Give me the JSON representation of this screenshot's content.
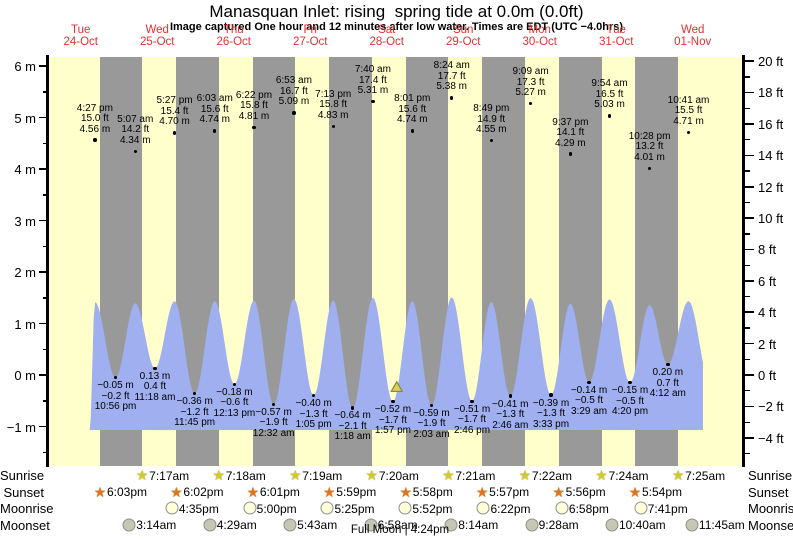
{
  "title": "Manasquan Inlet: rising  spring tide at 0.0m (0.0ft)",
  "subtitle": "Image captured One hour and 12 minutes after low water. Times are EDT (UTC −4.0hrs)",
  "full_moon": "Full Moon | 4:24pm",
  "colors": {
    "background": "#ffffff",
    "day_band": "#ffffcc",
    "night_band": "#999999",
    "water": "#9fafef",
    "day_label_red": "#e03232",
    "annotation": "#000000",
    "marker_fill": "#ddcf5e",
    "marker_stroke": "#8b8b33",
    "sunrise_star": "#d2ca28",
    "sunset_star": "#e1751e",
    "moonrise_circle": "#ffffd9",
    "moonset_circle": "#c6c6b4"
  },
  "chart_data": {
    "type": "area",
    "title": "Manasquan Inlet: rising  spring tide at 0.0m (0.0ft)",
    "x_days": [
      {
        "name": "Tue",
        "date": "24-Oct"
      },
      {
        "name": "Wed",
        "date": "25-Oct"
      },
      {
        "name": "Thu",
        "date": "26-Oct"
      },
      {
        "name": "Fri",
        "date": "27-Oct"
      },
      {
        "name": "Sat",
        "date": "28-Oct"
      },
      {
        "name": "Sun",
        "date": "29-Oct"
      },
      {
        "name": "Mon",
        "date": "30-Oct"
      },
      {
        "name": "Tue",
        "date": "31-Oct"
      },
      {
        "name": "Wed",
        "date": "01-Nov"
      }
    ],
    "y_axis_left": {
      "unit": "m",
      "tick_values": [
        6,
        5,
        4,
        3,
        2,
        1,
        0,
        -1
      ],
      "tick_labels": [
        "6 m",
        "5 m",
        "4 m",
        "3 m",
        "2 m",
        "1 m",
        "0 m",
        "−1 m"
      ]
    },
    "y_axis_right": {
      "unit": "ft",
      "tick_values": [
        20,
        18,
        16,
        14,
        12,
        10,
        8,
        6,
        4,
        2,
        0,
        -2,
        -4
      ],
      "tick_labels": [
        "20 ft",
        "18 ft",
        "16 ft",
        "14 ft",
        "12 ft",
        "10 ft",
        "8 ft",
        "6 ft",
        "4 ft",
        "2 ft",
        "0 ft",
        "−2 ft",
        "−4 ft"
      ]
    },
    "tides": [
      {
        "kind": "high",
        "day": 0,
        "time": "4:27 pm",
        "ft": "15.0 ft",
        "m": "4.56 m",
        "m_value": 4.56
      },
      {
        "kind": "low",
        "day": 0,
        "time": "10:56 pm",
        "ft": "−0.2 ft",
        "m": "−0.05 m",
        "m_value": -0.05
      },
      {
        "kind": "high",
        "day": 1,
        "time": "5:07 am",
        "ft": "14.2 ft",
        "m": "4.34 m",
        "m_value": 4.34
      },
      {
        "kind": "low",
        "day": 1,
        "time": "11:18 am",
        "ft": "0.4 ft",
        "m": "0.13 m",
        "m_value": 0.13
      },
      {
        "kind": "high",
        "day": 1,
        "time": "5:27 pm",
        "ft": "15.4 ft",
        "m": "4.70 m",
        "m_value": 4.7
      },
      {
        "kind": "low",
        "day": 1,
        "time": "11:45 pm",
        "ft": "−1.2 ft",
        "m": "−0.36 m",
        "m_value": -0.36
      },
      {
        "kind": "high",
        "day": 2,
        "time": "6:03 am",
        "ft": "15.6 ft",
        "m": "4.74 m",
        "m_value": 4.74
      },
      {
        "kind": "low",
        "day": 2,
        "time": "12:13 pm",
        "ft": "−0.6 ft",
        "m": "−0.18 m",
        "m_value": -0.18
      },
      {
        "kind": "high",
        "day": 2,
        "time": "6:22 pm",
        "ft": "15.8 ft",
        "m": "4.81 m",
        "m_value": 4.81
      },
      {
        "kind": "low",
        "day": 3,
        "time": "12:32 am",
        "ft": "−1.9 ft",
        "m": "−0.57 m",
        "m_value": -0.57
      },
      {
        "kind": "high",
        "day": 3,
        "time": "6:53 am",
        "ft": "16.7 ft",
        "m": "5.09 m",
        "m_value": 5.09
      },
      {
        "kind": "low",
        "day": 3,
        "time": "1:05 pm",
        "ft": "−1.3 ft",
        "m": "−0.40 m",
        "m_value": -0.4
      },
      {
        "kind": "high",
        "day": 3,
        "time": "7:13 pm",
        "ft": "15.8 ft",
        "m": "4.83 m",
        "m_value": 4.83
      },
      {
        "kind": "low",
        "day": 4,
        "time": "1:18 am",
        "ft": "−2.1 ft",
        "m": "−0.64 m",
        "m_value": -0.64
      },
      {
        "kind": "high",
        "day": 4,
        "time": "7:40 am",
        "ft": "17.4 ft",
        "m": "5.31 m",
        "m_value": 5.31
      },
      {
        "kind": "low",
        "day": 4,
        "time": "1:57 pm",
        "ft": "−1.7 ft",
        "m": "−0.52 m",
        "m_value": -0.52
      },
      {
        "kind": "high",
        "day": 4,
        "time": "8:01 pm",
        "ft": "15.6 ft",
        "m": "4.74 m",
        "m_value": 4.74
      },
      {
        "kind": "low",
        "day": 5,
        "time": "2:03 am",
        "ft": "−1.9 ft",
        "m": "−0.59 m",
        "m_value": -0.59
      },
      {
        "kind": "high",
        "day": 5,
        "time": "8:24 am",
        "ft": "17.7 ft",
        "m": "5.38 m",
        "m_value": 5.38
      },
      {
        "kind": "low",
        "day": 5,
        "time": "2:46 pm",
        "ft": "−1.7 ft",
        "m": "−0.51 m",
        "m_value": -0.51
      },
      {
        "kind": "high",
        "day": 5,
        "time": "8:49 pm",
        "ft": "14.9 ft",
        "m": "4.55 m",
        "m_value": 4.55
      },
      {
        "kind": "low",
        "day": 6,
        "time": "2:46 am",
        "ft": "−1.3 ft",
        "m": "−0.41 m",
        "m_value": -0.41
      },
      {
        "kind": "high",
        "day": 6,
        "time": "9:09 am",
        "ft": "17.3 ft",
        "m": "5.27 m",
        "m_value": 5.27
      },
      {
        "kind": "low",
        "day": 6,
        "time": "3:33 pm",
        "ft": "−1.3 ft",
        "m": "−0.39 m",
        "m_value": -0.39
      },
      {
        "kind": "high",
        "day": 6,
        "time": "9:37 pm",
        "ft": "14.1 ft",
        "m": "4.29 m",
        "m_value": 4.29
      },
      {
        "kind": "low",
        "day": 7,
        "time": "3:29 am",
        "ft": "−0.5 ft",
        "m": "−0.14 m",
        "m_value": -0.14
      },
      {
        "kind": "high",
        "day": 7,
        "time": "9:54 am",
        "ft": "16.5 ft",
        "m": "5.03 m",
        "m_value": 5.03
      },
      {
        "kind": "low",
        "day": 7,
        "time": "4:20 pm",
        "ft": "−0.5 ft",
        "m": "−0.15 m",
        "m_value": -0.15
      },
      {
        "kind": "high",
        "day": 7,
        "time": "10:28 pm",
        "ft": "13.2 ft",
        "m": "4.01 m",
        "m_value": 4.01
      },
      {
        "kind": "low",
        "day": 8,
        "time": "4:12 am",
        "ft": "0.7 ft",
        "m": "0.20 m",
        "m_value": 0.2
      },
      {
        "kind": "high",
        "day": 8,
        "time": "10:41 am",
        "ft": "15.5 ft",
        "m": "4.71 m",
        "m_value": 4.71
      }
    ],
    "current_time_marker": {
      "day": 4,
      "time": "3:09 pm"
    }
  },
  "astro": {
    "rows": [
      {
        "label": "Sunrise",
        "icon": "sunrise-star",
        "entries": [
          {
            "day": 1,
            "time": "7:17am"
          },
          {
            "day": 2,
            "time": "7:18am"
          },
          {
            "day": 3,
            "time": "7:19am"
          },
          {
            "day": 4,
            "time": "7:20am"
          },
          {
            "day": 5,
            "time": "7:21am"
          },
          {
            "day": 6,
            "time": "7:22am"
          },
          {
            "day": 7,
            "time": "7:24am"
          },
          {
            "day": 8,
            "time": "7:25am"
          }
        ]
      },
      {
        "label": "Sunset",
        "icon": "sunset-star",
        "entries": [
          {
            "day": 0,
            "time": "6:03pm"
          },
          {
            "day": 1,
            "time": "6:02pm"
          },
          {
            "day": 2,
            "time": "6:01pm"
          },
          {
            "day": 3,
            "time": "5:59pm"
          },
          {
            "day": 4,
            "time": "5:58pm"
          },
          {
            "day": 5,
            "time": "5:57pm"
          },
          {
            "day": 6,
            "time": "5:56pm"
          },
          {
            "day": 7,
            "time": "5:54pm"
          }
        ]
      },
      {
        "label": "Moonrise",
        "icon": "moonrise-circle",
        "entries": [
          {
            "day": 1,
            "time": "4:35pm"
          },
          {
            "day": 2,
            "time": "5:00pm"
          },
          {
            "day": 3,
            "time": "5:25pm"
          },
          {
            "day": 4,
            "time": "5:52pm"
          },
          {
            "day": 5,
            "time": "6:22pm"
          },
          {
            "day": 6,
            "time": "6:58pm"
          },
          {
            "day": 7,
            "time": "7:41pm"
          }
        ]
      },
      {
        "label": "Moonset",
        "icon": "moonset-circle",
        "entries": [
          {
            "day": 1,
            "time": "3:14am"
          },
          {
            "day": 2,
            "time": "4:29am"
          },
          {
            "day": 3,
            "time": "5:43am"
          },
          {
            "day": 4,
            "time": "6:58am"
          },
          {
            "day": 5,
            "time": "8:14am"
          },
          {
            "day": 6,
            "time": "9:28am"
          },
          {
            "day": 7,
            "time": "10:40am"
          },
          {
            "day": 8,
            "time": "11:45am"
          }
        ]
      }
    ]
  }
}
